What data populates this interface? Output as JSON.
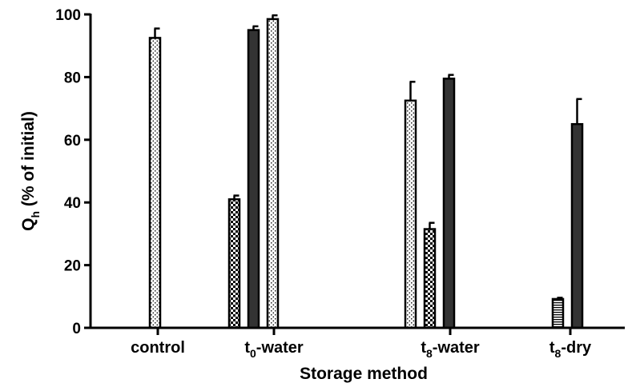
{
  "chart_data": {
    "type": "bar",
    "xlabel": "Storage method",
    "ylabel_main": "Q",
    "ylabel_sub": "h",
    "ylabel_rest": " (% of initial)",
    "ylim": [
      0,
      100
    ],
    "yticks": [
      "0",
      "20",
      "40",
      "60",
      "80",
      "100"
    ],
    "categories": [
      {
        "main": "control",
        "sub": "",
        "rest": ""
      },
      {
        "main": "t",
        "sub": "0",
        "rest": "-water"
      },
      {
        "main": "t",
        "sub": "8",
        "rest": "-water"
      },
      {
        "main": "t",
        "sub": "8",
        "rest": "-dry"
      }
    ],
    "bars": [
      {
        "category": 0,
        "slot": 1,
        "pattern": "dots",
        "value": 92.5,
        "error": 3.0
      },
      {
        "category": 1,
        "slot": 0,
        "pattern": "checker",
        "value": 41.0,
        "error": 1.2
      },
      {
        "category": 1,
        "slot": 1,
        "pattern": "solid",
        "value": 95.0,
        "error": 1.2
      },
      {
        "category": 1,
        "slot": 2,
        "pattern": "dots",
        "value": 98.5,
        "error": 1.2
      },
      {
        "category": 2,
        "slot": 0,
        "pattern": "dots",
        "value": 72.5,
        "error": 6.0
      },
      {
        "category": 2,
        "slot": 1,
        "pattern": "checker",
        "value": 31.5,
        "error": 2.0
      },
      {
        "category": 2,
        "slot": 2,
        "pattern": "solid",
        "value": 79.5,
        "error": 1.2
      },
      {
        "category": 3,
        "slot": 0,
        "pattern": "stripes",
        "value": 9.2,
        "error": 0.4
      },
      {
        "category": 3,
        "slot": 1,
        "pattern": "solid",
        "value": 65.0,
        "error": 8.0
      }
    ],
    "colors": {
      "solid": "#333333",
      "outline": "#000000"
    }
  }
}
